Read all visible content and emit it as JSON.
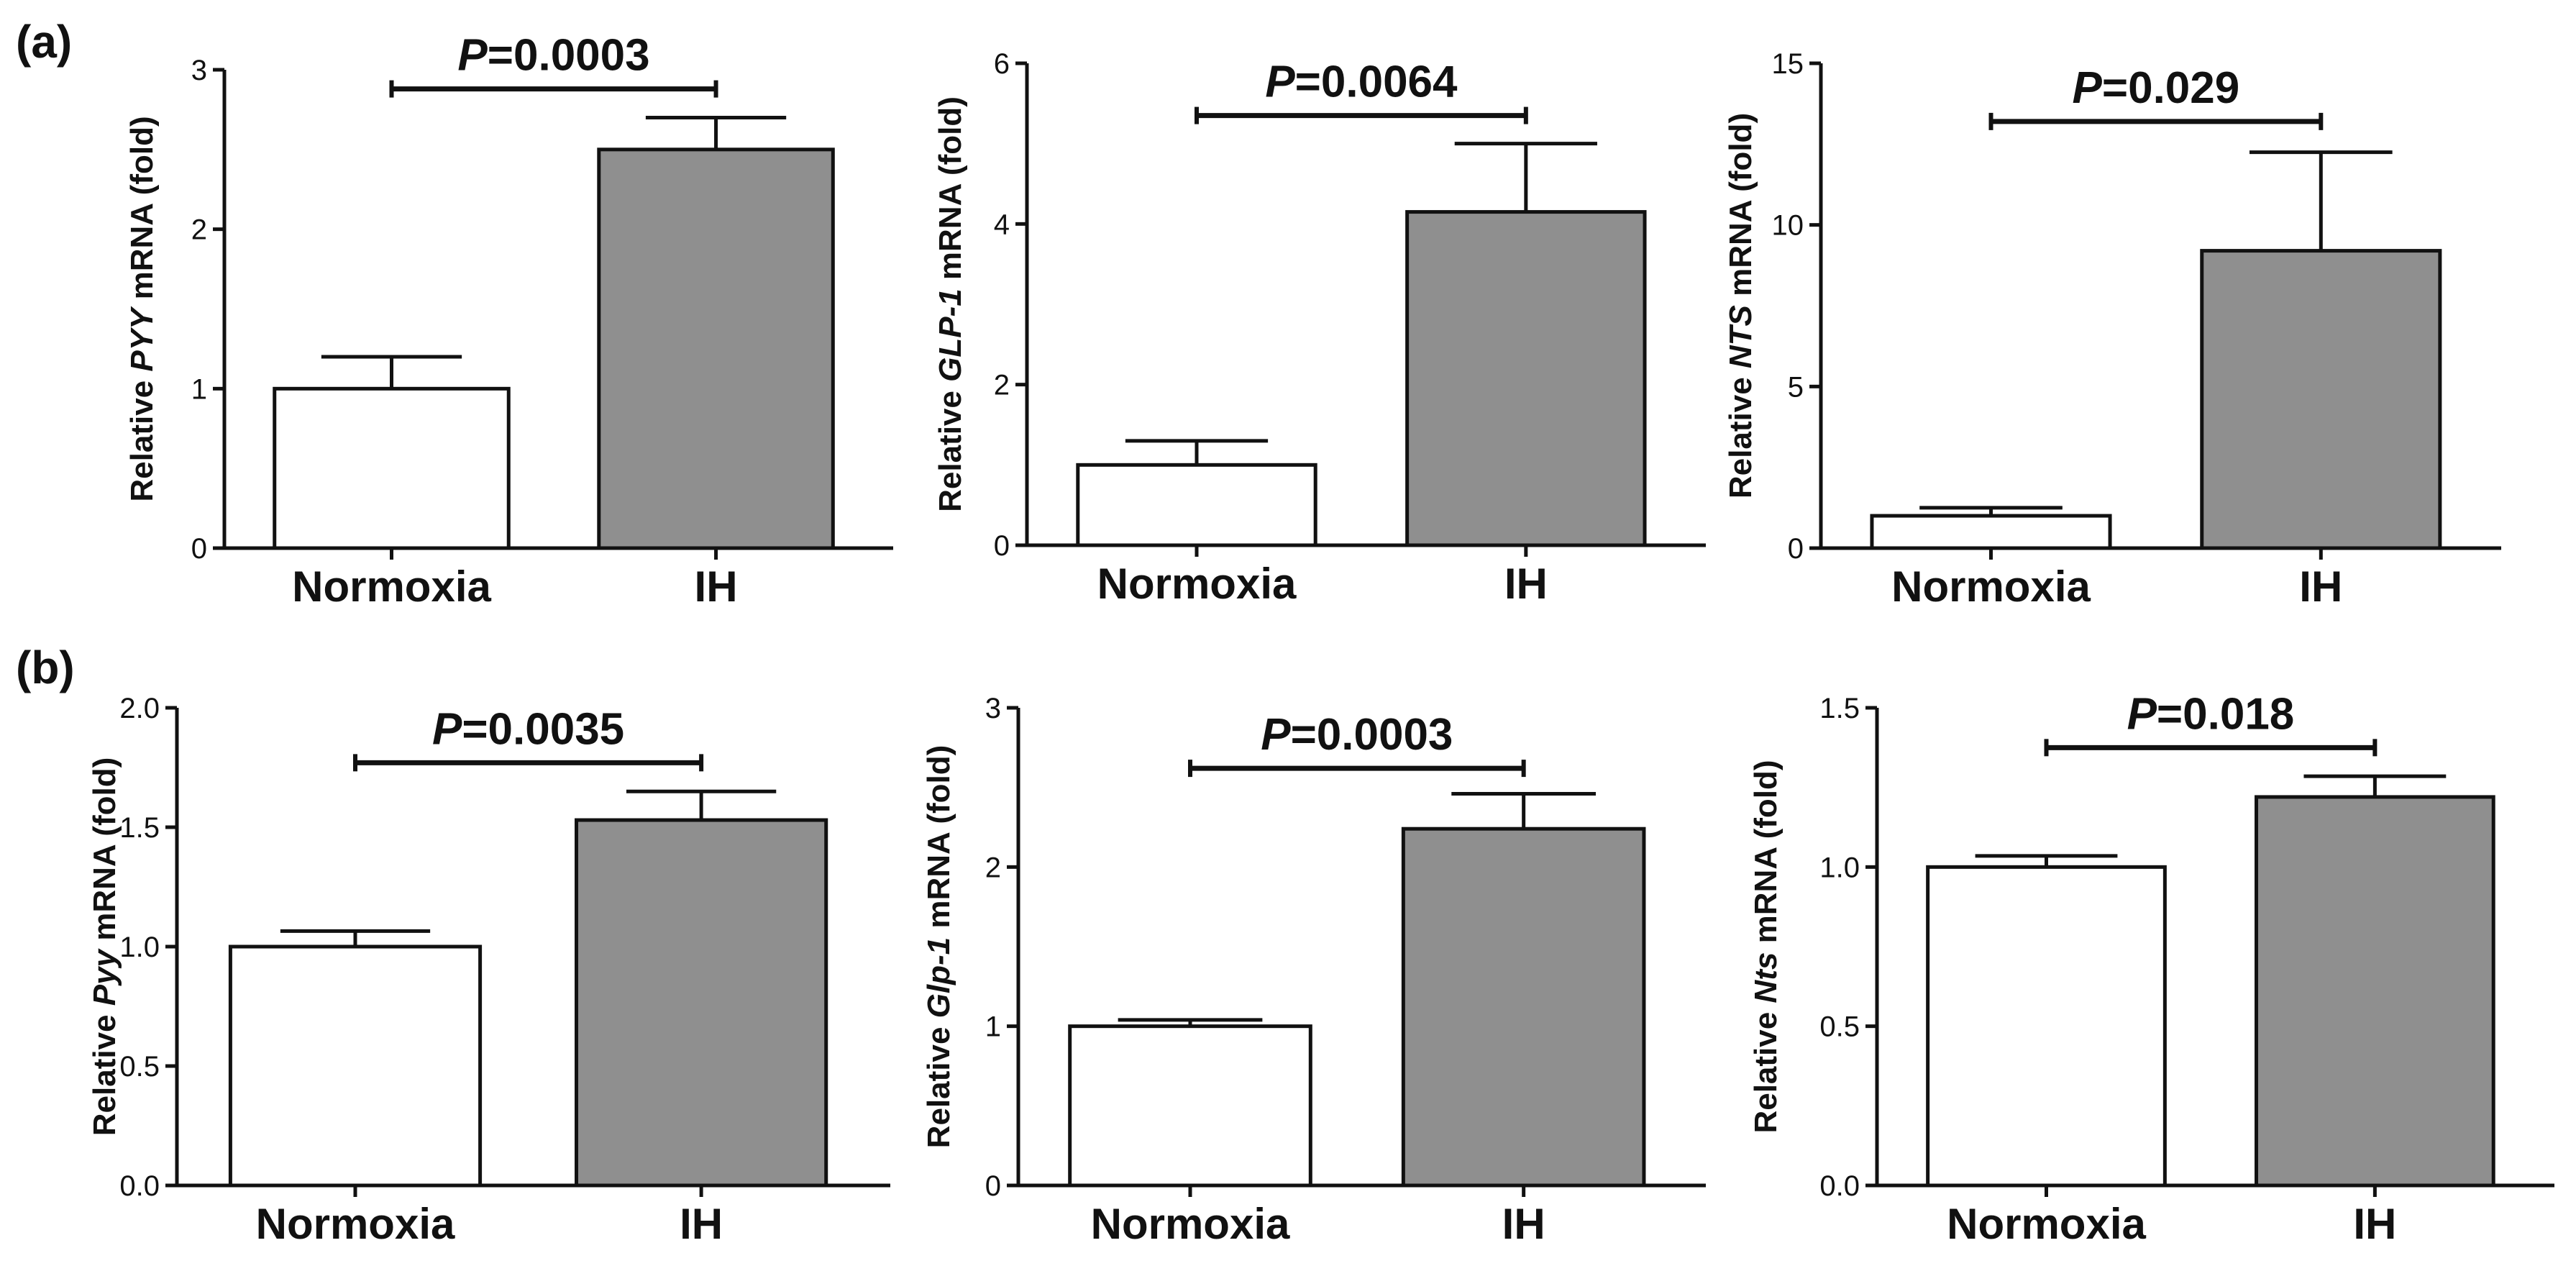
{
  "panel_labels": [
    "(a)",
    "(b)"
  ],
  "colors": {
    "axis": "#111111",
    "bar_normoxia": "#ffffff",
    "bar_ih": "#8f8f8f"
  },
  "chart_data": [
    {
      "type": "bar",
      "panel": "(a)",
      "categories": [
        "Normoxia",
        "IH"
      ],
      "values": [
        1.0,
        2.5
      ],
      "errors": [
        0.2,
        0.2
      ],
      "ylim": [
        0,
        3
      ],
      "yticks": [
        "0",
        "1",
        "2",
        "3"
      ],
      "ylabel": {
        "pre": "Relative ",
        "gene": "PYY",
        "post": " mRNA (fold)"
      },
      "p_value": {
        "label": "P",
        "value": "=0.0003"
      },
      "bracket_y": 2.88
    },
    {
      "type": "bar",
      "panel": "(a)",
      "categories": [
        "Normoxia",
        "IH"
      ],
      "values": [
        1.0,
        4.15
      ],
      "errors": [
        0.3,
        0.85
      ],
      "ylim": [
        0,
        6
      ],
      "yticks": [
        "0",
        "2",
        "4",
        "6"
      ],
      "ylabel": {
        "pre": "Relative ",
        "gene": "GLP-1",
        "post": " mRNA (fold)"
      },
      "p_value": {
        "label": "P",
        "value": "=0.0064"
      },
      "bracket_y": 5.35
    },
    {
      "type": "bar",
      "panel": "(a)",
      "categories": [
        "Normoxia",
        "IH"
      ],
      "values": [
        1.0,
        9.2
      ],
      "errors": [
        0.25,
        3.05
      ],
      "ylim": [
        0,
        15
      ],
      "yticks": [
        "0",
        "5",
        "10",
        "15"
      ],
      "ylabel": {
        "pre": "Relative ",
        "gene": "NTS",
        "post": " mRNA (fold)"
      },
      "p_value": {
        "label": "P",
        "value": "=0.029"
      },
      "bracket_y": 13.2
    },
    {
      "type": "bar",
      "panel": "(b)",
      "categories": [
        "Normoxia",
        "IH"
      ],
      "values": [
        1.0,
        1.53
      ],
      "errors": [
        0.065,
        0.12
      ],
      "ylim": [
        0,
        2.0
      ],
      "yticks": [
        "0.0",
        "0.5",
        "1.0",
        "1.5",
        "2.0"
      ],
      "ylabel": {
        "pre": "Relative ",
        "gene": "Pyy",
        "post": " mRNA (fold)"
      },
      "p_value": {
        "label": "P",
        "value": "=0.0035"
      },
      "bracket_y": 1.77
    },
    {
      "type": "bar",
      "panel": "(b)",
      "categories": [
        "Normoxia",
        "IH"
      ],
      "values": [
        1.0,
        2.24
      ],
      "errors": [
        0.04,
        0.22
      ],
      "ylim": [
        0,
        3
      ],
      "yticks": [
        "0",
        "1",
        "2",
        "3"
      ],
      "ylabel": {
        "pre": "Relative ",
        "gene": "Glp-1",
        "post": " mRNA (fold)"
      },
      "p_value": {
        "label": "P",
        "value": "=0.0003"
      },
      "bracket_y": 2.62
    },
    {
      "type": "bar",
      "panel": "(b)",
      "categories": [
        "Normoxia",
        "IH"
      ],
      "values": [
        1.0,
        1.22
      ],
      "errors": [
        0.035,
        0.065
      ],
      "ylim": [
        0,
        1.5
      ],
      "yticks": [
        "0.0",
        "0.5",
        "1.0",
        "1.5"
      ],
      "ylabel": {
        "pre": "Relative ",
        "gene": "Nts",
        "post": " mRNA (fold)"
      },
      "p_value": {
        "label": "P",
        "value": "=0.018"
      },
      "bracket_y": 1.375
    }
  ]
}
